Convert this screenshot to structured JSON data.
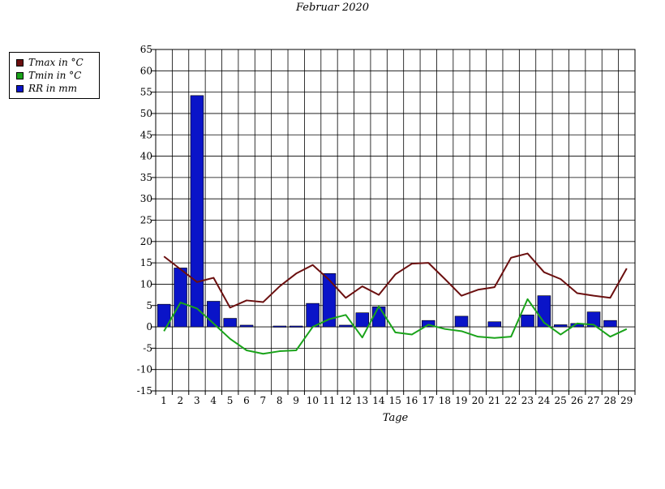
{
  "chart_data": {
    "type": "bar",
    "title": "Februar 2020",
    "xlabel": "Tage",
    "ylabel": "",
    "ylim": [
      -15,
      65
    ],
    "yticks": [
      -15,
      -10,
      -5,
      0,
      5,
      10,
      15,
      20,
      25,
      30,
      35,
      40,
      45,
      50,
      55,
      60,
      65
    ],
    "categories": [
      "1",
      "2",
      "3",
      "4",
      "5",
      "6",
      "7",
      "8",
      "9",
      "10",
      "11",
      "12",
      "13",
      "14",
      "15",
      "16",
      "17",
      "18",
      "19",
      "20",
      "21",
      "22",
      "23",
      "24",
      "25",
      "26",
      "27",
      "28",
      "29"
    ],
    "grid": true,
    "legend_position": "left",
    "series": [
      {
        "name": "Tmax in °C",
        "type": "line",
        "color": "#6b0f0f",
        "values": [
          16.5,
          13.5,
          10.5,
          11.5,
          4.5,
          6.2,
          5.8,
          9.5,
          12.5,
          14.5,
          11.0,
          6.8,
          9.5,
          7.5,
          12.3,
          14.8,
          15.0,
          11.2,
          7.3,
          8.7,
          9.3,
          16.2,
          17.2,
          12.8,
          11.2,
          7.9,
          7.3,
          6.8,
          13.7
        ]
      },
      {
        "name": "Tmin in °C",
        "type": "line",
        "color": "#1aa31a",
        "values": [
          -1.0,
          5.7,
          4.3,
          0.8,
          -2.8,
          -5.5,
          -6.3,
          -5.7,
          -5.5,
          0.0,
          1.8,
          2.8,
          -2.5,
          4.8,
          -1.3,
          -1.8,
          0.5,
          -0.5,
          -1.0,
          -2.3,
          -2.6,
          -2.3,
          6.5,
          1.0,
          -1.8,
          0.8,
          0.5,
          -2.3,
          -0.5
        ]
      },
      {
        "name": "RR in mm",
        "type": "bar",
        "color": "#0a14c8",
        "values": [
          5.3,
          13.8,
          54.2,
          6.0,
          2.0,
          0.4,
          0.0,
          0.2,
          0.2,
          5.5,
          12.5,
          0.4,
          3.3,
          4.7,
          0.0,
          0.0,
          1.5,
          0.0,
          2.5,
          0.0,
          1.2,
          0.0,
          2.8,
          7.3,
          0.5,
          0.8,
          3.5,
          1.5,
          0.0
        ]
      }
    ]
  }
}
